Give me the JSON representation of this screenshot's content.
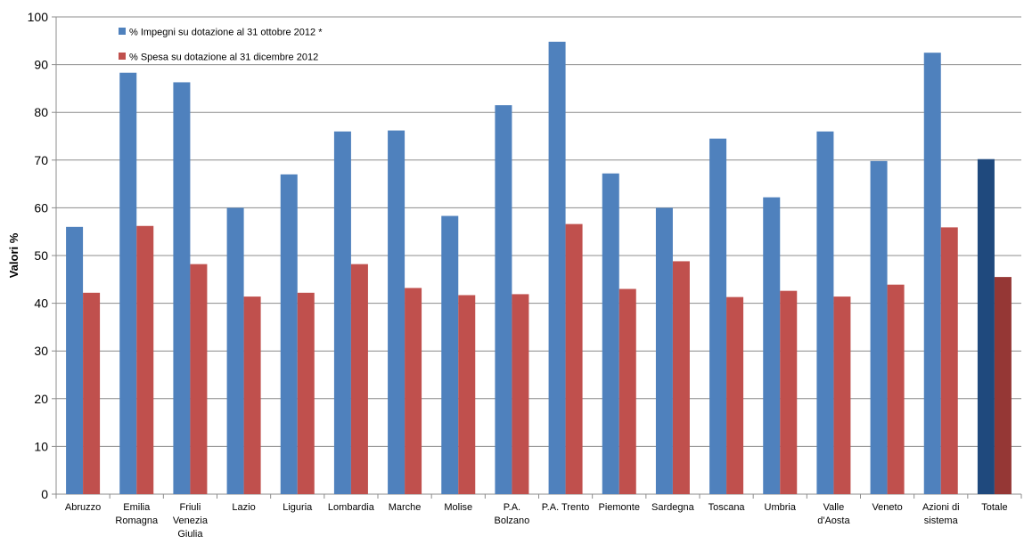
{
  "chart_data": {
    "type": "bar",
    "title": "",
    "xlabel": "",
    "ylabel": "Valori %",
    "ylim": [
      0,
      100
    ],
    "yticks": [
      0,
      10,
      20,
      30,
      40,
      50,
      60,
      70,
      80,
      90,
      100
    ],
    "grid": true,
    "legend_position": "top-left",
    "categories": [
      "Abruzzo",
      "Emilia Romagna",
      "Friuli Venezia Giulia",
      "Lazio",
      "Liguria",
      "Lombardia",
      "Marche",
      "Molise",
      "P.A. Bolzano",
      "P.A. Trento",
      "Piemonte",
      "Sardegna",
      "Toscana",
      "Umbria",
      "Valle d'Aosta",
      "Veneto",
      "Azioni di sistema",
      "Totale"
    ],
    "category_label_lines": [
      [
        "Abruzzo"
      ],
      [
        "Emilia",
        "Romagna"
      ],
      [
        "Friuli",
        "Venezia",
        "Giulia"
      ],
      [
        "Lazio"
      ],
      [
        "Liguria"
      ],
      [
        "Lombardia"
      ],
      [
        "Marche"
      ],
      [
        "Molise"
      ],
      [
        "P.A.",
        "Bolzano"
      ],
      [
        "P.A. Trento"
      ],
      [
        "Piemonte"
      ],
      [
        "Sardegna"
      ],
      [
        "Toscana"
      ],
      [
        "Umbria"
      ],
      [
        "Valle",
        "d'Aosta"
      ],
      [
        "Veneto"
      ],
      [
        "Azioni di",
        "sistema"
      ],
      [
        "Totale"
      ]
    ],
    "series": [
      {
        "name": "% Impegni su dotazione al 31 ottobre 2012 *",
        "color": "#4F81BD",
        "highlight_color": "#1F497D",
        "values": [
          56,
          88.3,
          86.3,
          60,
          67,
          76,
          76.2,
          58.3,
          81.5,
          94.8,
          67.2,
          60,
          74.5,
          62.2,
          76,
          69.8,
          92.5,
          70.2
        ]
      },
      {
        "name": "% Spesa su dotazione al 31 dicembre 2012",
        "color": "#C0504D",
        "highlight_color": "#953735",
        "values": [
          42.2,
          56.2,
          48.2,
          41.4,
          42.2,
          48.2,
          43.2,
          41.7,
          41.9,
          56.6,
          43,
          48.8,
          41.3,
          42.6,
          41.4,
          43.9,
          55.9,
          45.5
        ]
      }
    ],
    "highlighted_category": "Totale"
  }
}
